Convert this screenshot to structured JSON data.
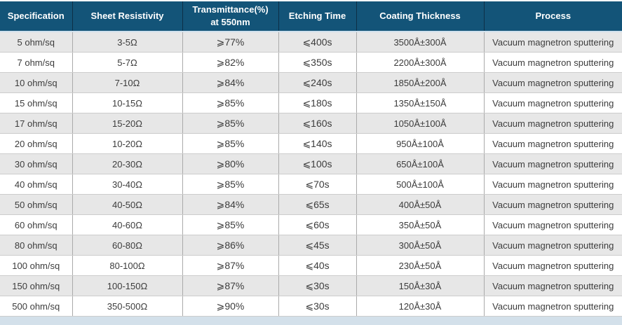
{
  "colors": {
    "header_bg": "#135478",
    "header_text": "#ffffff",
    "header_divider": "#0d2f47",
    "row_alt": "#e7e7e7",
    "row_bg": "#ffffff",
    "body_text": "#3c3c3c",
    "v_divider": "#aaaaaa",
    "h_divider": "#cccccc",
    "under_header": "#cfe0ec",
    "footer_strip": "#d3e0ea"
  },
  "table": {
    "columns": [
      {
        "key": "specification",
        "label": "Specification"
      },
      {
        "key": "sheet-resistivity",
        "label": "Sheet Resistivity"
      },
      {
        "key": "transmittance",
        "label": "Transmittance(%)\nat 550nm"
      },
      {
        "key": "etching-time",
        "label": "Etching Time"
      },
      {
        "key": "coating-thickness",
        "label": "Coating Thickness"
      },
      {
        "key": "process",
        "label": "Process"
      }
    ],
    "rows": [
      [
        "5 ohm/sq",
        "3-5Ω",
        "⩾77%",
        "⩽400s",
        "3500Å±300Å",
        "Vacuum magnetron sputtering"
      ],
      [
        "7 ohm/sq",
        "5-7Ω",
        "⩾82%",
        "⩽350s",
        "2200Å±300Å",
        "Vacuum magnetron sputtering"
      ],
      [
        "10 ohm/sq",
        "7-10Ω",
        "⩾84%",
        "⩽240s",
        "1850Å±200Å",
        "Vacuum magnetron sputtering"
      ],
      [
        "15 ohm/sq",
        "10-15Ω",
        "⩾85%",
        "⩽180s",
        "1350Å±150Å",
        "Vacuum magnetron sputtering"
      ],
      [
        "17 ohm/sq",
        "15-20Ω",
        "⩾85%",
        "⩽160s",
        "1050Å±100Å",
        "Vacuum magnetron sputtering"
      ],
      [
        "20 ohm/sq",
        "10-20Ω",
        "⩾85%",
        "⩽140s",
        "950Å±100Å",
        "Vacuum magnetron sputtering"
      ],
      [
        "30 ohm/sq",
        "20-30Ω",
        "⩾80%",
        "⩽100s",
        "650Å±100Å",
        "Vacuum magnetron sputtering"
      ],
      [
        "40 ohm/sq",
        "30-40Ω",
        "⩾85%",
        "⩽70s",
        "500Å±100Å",
        "Vacuum magnetron sputtering"
      ],
      [
        "50 ohm/sq",
        "40-50Ω",
        "⩾84%",
        "⩽65s",
        "400Å±50Å",
        "Vacuum magnetron sputtering"
      ],
      [
        "60 ohm/sq",
        "40-60Ω",
        "⩾85%",
        "⩽60s",
        "350Å±50Å",
        "Vacuum magnetron sputtering"
      ],
      [
        "80 ohm/sq",
        "60-80Ω",
        "⩾86%",
        "⩽45s",
        "300Å±50Å",
        "Vacuum magnetron sputtering"
      ],
      [
        "100 ohm/sq",
        "80-100Ω",
        "⩾87%",
        "⩽40s",
        "230Å±50Å",
        "Vacuum magnetron sputtering"
      ],
      [
        "150 ohm/sq",
        "100-150Ω",
        "⩾87%",
        "⩽30s",
        "150Å±30Å",
        "Vacuum magnetron sputtering"
      ],
      [
        "500 ohm/sq",
        "350-500Ω",
        "⩾90%",
        "⩽30s",
        "120Å±30Å",
        "Vacuum magnetron sputtering"
      ]
    ]
  }
}
